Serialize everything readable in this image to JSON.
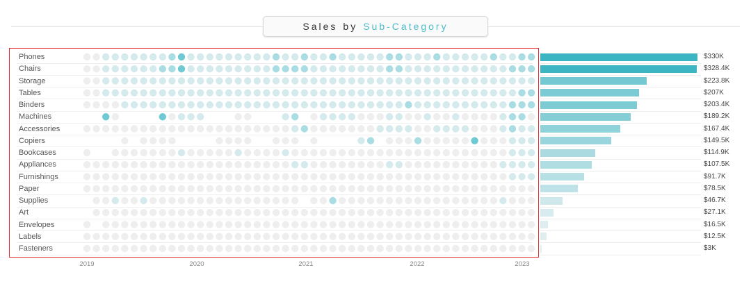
{
  "title": {
    "prefix_word1": "Sales",
    "prefix_word2": "by",
    "accent": "Sub-Category"
  },
  "chart_data": [
    {
      "type": "heatmap",
      "subtype": "dot-matrix",
      "title": "Sales by Sub-Category",
      "rows": [
        "Phones",
        "Chairs",
        "Storage",
        "Tables",
        "Binders",
        "Machines",
        "Accessories",
        "Copiers",
        "Bookcases",
        "Appliances",
        "Furnishings",
        "Paper",
        "Supplies",
        "Art",
        "Envelopes",
        "Labels",
        "Fasteners"
      ],
      "x_ticks": [
        "2019",
        "2020",
        "2021",
        "2022",
        "2023"
      ],
      "columns": 48,
      "levels_description": "0 = no sales (blank), 1 = lowest shade ... 5 = highest shade",
      "levels": [
        [
          1,
          1,
          2,
          2,
          2,
          2,
          2,
          2,
          2,
          3,
          4,
          2,
          2,
          2,
          2,
          2,
          2,
          2,
          2,
          2,
          3,
          2,
          2,
          3,
          2,
          2,
          3,
          2,
          2,
          2,
          2,
          2,
          3,
          3,
          2,
          2,
          2,
          3,
          2,
          2,
          2,
          2,
          2,
          3,
          2,
          2,
          3,
          3
        ],
        [
          1,
          1,
          2,
          2,
          2,
          2,
          2,
          2,
          3,
          3,
          4,
          2,
          2,
          2,
          2,
          2,
          2,
          2,
          2,
          2,
          3,
          3,
          3,
          3,
          2,
          2,
          2,
          2,
          2,
          2,
          2,
          2,
          3,
          3,
          2,
          2,
          2,
          2,
          2,
          2,
          2,
          2,
          2,
          2,
          2,
          3,
          3,
          3
        ],
        [
          1,
          1,
          2,
          2,
          2,
          2,
          2,
          2,
          2,
          2,
          2,
          2,
          2,
          2,
          2,
          2,
          2,
          2,
          2,
          2,
          2,
          2,
          2,
          2,
          2,
          2,
          2,
          2,
          2,
          2,
          2,
          2,
          2,
          2,
          2,
          2,
          2,
          2,
          2,
          2,
          2,
          2,
          2,
          2,
          2,
          2,
          2,
          2
        ],
        [
          1,
          1,
          2,
          2,
          2,
          2,
          2,
          2,
          2,
          2,
          2,
          2,
          2,
          2,
          2,
          2,
          2,
          2,
          2,
          2,
          2,
          2,
          2,
          2,
          2,
          2,
          2,
          2,
          2,
          2,
          2,
          2,
          2,
          2,
          2,
          2,
          2,
          2,
          2,
          2,
          2,
          2,
          2,
          2,
          2,
          2,
          3,
          3
        ],
        [
          1,
          1,
          1,
          1,
          2,
          2,
          2,
          2,
          2,
          2,
          2,
          2,
          2,
          2,
          2,
          2,
          2,
          2,
          2,
          2,
          2,
          2,
          2,
          2,
          2,
          2,
          2,
          2,
          2,
          2,
          2,
          2,
          2,
          2,
          3,
          2,
          2,
          2,
          2,
          2,
          2,
          2,
          2,
          2,
          2,
          3,
          3,
          3
        ],
        [
          0,
          0,
          4,
          1,
          0,
          0,
          0,
          0,
          4,
          1,
          2,
          2,
          2,
          0,
          0,
          0,
          1,
          1,
          0,
          0,
          0,
          2,
          3,
          0,
          1,
          2,
          2,
          2,
          2,
          1,
          1,
          1,
          2,
          2,
          1,
          1,
          2,
          1,
          1,
          2,
          1,
          1,
          1,
          1,
          2,
          3,
          3,
          1
        ],
        [
          1,
          1,
          1,
          1,
          1,
          1,
          1,
          1,
          1,
          1,
          1,
          1,
          1,
          1,
          1,
          1,
          1,
          1,
          1,
          1,
          1,
          1,
          2,
          3,
          1,
          1,
          1,
          1,
          1,
          1,
          1,
          2,
          2,
          2,
          2,
          1,
          1,
          2,
          2,
          2,
          2,
          1,
          1,
          1,
          2,
          3,
          2,
          2
        ],
        [
          0,
          0,
          0,
          0,
          1,
          0,
          1,
          1,
          1,
          1,
          0,
          0,
          0,
          0,
          1,
          1,
          1,
          1,
          0,
          0,
          1,
          1,
          1,
          0,
          1,
          0,
          0,
          0,
          0,
          2,
          3,
          0,
          1,
          1,
          1,
          3,
          1,
          1,
          1,
          1,
          1,
          4,
          1,
          1,
          1,
          2,
          2,
          2
        ],
        [
          1,
          0,
          0,
          1,
          1,
          1,
          1,
          1,
          1,
          1,
          2,
          1,
          1,
          1,
          1,
          1,
          2,
          1,
          1,
          1,
          1,
          2,
          1,
          1,
          1,
          1,
          1,
          1,
          1,
          1,
          1,
          1,
          1,
          1,
          1,
          1,
          1,
          1,
          1,
          1,
          1,
          1,
          1,
          1,
          1,
          2,
          2,
          2
        ],
        [
          1,
          1,
          1,
          1,
          1,
          1,
          1,
          1,
          1,
          1,
          1,
          1,
          1,
          1,
          1,
          1,
          1,
          1,
          1,
          1,
          1,
          1,
          2,
          2,
          1,
          1,
          1,
          1,
          1,
          1,
          1,
          1,
          2,
          2,
          1,
          1,
          1,
          1,
          1,
          1,
          1,
          1,
          1,
          1,
          2,
          2,
          2,
          2
        ],
        [
          1,
          1,
          1,
          1,
          1,
          1,
          1,
          1,
          1,
          1,
          1,
          1,
          1,
          1,
          1,
          1,
          1,
          1,
          1,
          1,
          1,
          1,
          1,
          1,
          1,
          1,
          1,
          1,
          1,
          1,
          1,
          1,
          1,
          1,
          1,
          1,
          1,
          1,
          1,
          1,
          1,
          1,
          1,
          1,
          1,
          2,
          2,
          2
        ],
        [
          1,
          1,
          1,
          1,
          1,
          1,
          1,
          1,
          1,
          1,
          1,
          1,
          1,
          1,
          1,
          1,
          1,
          1,
          1,
          1,
          1,
          1,
          1,
          1,
          1,
          1,
          1,
          1,
          1,
          1,
          1,
          1,
          1,
          1,
          1,
          1,
          1,
          1,
          1,
          1,
          1,
          1,
          1,
          1,
          1,
          1,
          1,
          1
        ],
        [
          0,
          1,
          1,
          2,
          1,
          1,
          2,
          1,
          1,
          1,
          1,
          1,
          1,
          1,
          1,
          1,
          1,
          1,
          1,
          1,
          1,
          1,
          1,
          0,
          1,
          1,
          3,
          1,
          1,
          1,
          1,
          1,
          1,
          1,
          1,
          1,
          1,
          1,
          1,
          1,
          1,
          1,
          1,
          1,
          2,
          1,
          1,
          1
        ],
        [
          0,
          1,
          1,
          1,
          1,
          1,
          1,
          1,
          1,
          1,
          1,
          1,
          1,
          1,
          1,
          1,
          1,
          1,
          1,
          1,
          1,
          1,
          1,
          1,
          1,
          1,
          1,
          1,
          1,
          1,
          1,
          1,
          1,
          1,
          1,
          1,
          1,
          1,
          1,
          1,
          1,
          1,
          1,
          1,
          1,
          1,
          1,
          1
        ],
        [
          1,
          0,
          1,
          1,
          1,
          1,
          1,
          1,
          1,
          1,
          1,
          1,
          1,
          1,
          1,
          1,
          1,
          1,
          1,
          1,
          1,
          1,
          1,
          1,
          1,
          1,
          1,
          1,
          1,
          1,
          1,
          1,
          1,
          1,
          1,
          1,
          1,
          1,
          1,
          1,
          1,
          1,
          1,
          1,
          1,
          1,
          1,
          1
        ],
        [
          1,
          1,
          1,
          1,
          1,
          1,
          1,
          1,
          1,
          1,
          1,
          1,
          1,
          1,
          1,
          1,
          1,
          1,
          1,
          1,
          1,
          1,
          1,
          1,
          1,
          1,
          1,
          1,
          1,
          1,
          1,
          1,
          1,
          1,
          1,
          1,
          1,
          1,
          1,
          1,
          1,
          1,
          1,
          1,
          1,
          1,
          1,
          1
        ],
        [
          1,
          1,
          1,
          1,
          1,
          1,
          1,
          1,
          1,
          1,
          1,
          1,
          1,
          1,
          1,
          1,
          1,
          1,
          1,
          1,
          1,
          1,
          1,
          1,
          1,
          1,
          1,
          1,
          1,
          1,
          1,
          1,
          1,
          1,
          1,
          1,
          1,
          1,
          1,
          1,
          1,
          1,
          1,
          1,
          1,
          1,
          1,
          1
        ]
      ],
      "level_colors": [
        "#eeeeee",
        "#d4eaed",
        "#a9dde3",
        "#6ec9d3",
        "#3cb5c2"
      ]
    },
    {
      "type": "bar",
      "orientation": "horizontal",
      "categories": [
        "Phones",
        "Chairs",
        "Storage",
        "Tables",
        "Binders",
        "Machines",
        "Accessories",
        "Copiers",
        "Bookcases",
        "Appliances",
        "Furnishings",
        "Paper",
        "Supplies",
        "Art",
        "Envelopes",
        "Labels",
        "Fasteners"
      ],
      "values": [
        330000,
        328400,
        223800,
        207000,
        203400,
        189200,
        167400,
        149500,
        114900,
        107500,
        91700,
        78500,
        46700,
        27100,
        16500,
        12500,
        3000
      ],
      "value_labels": [
        "$330K",
        "$328.4K",
        "$223.8K",
        "$207K",
        "$203.4K",
        "$189.2K",
        "$167.4K",
        "$149.5K",
        "$114.9K",
        "$107.5K",
        "$91.7K",
        "$78.5K",
        "$46.7K",
        "$27.1K",
        "$16.5K",
        "$12.5K",
        "$3K"
      ],
      "xlim": [
        0,
        330000
      ]
    }
  ]
}
